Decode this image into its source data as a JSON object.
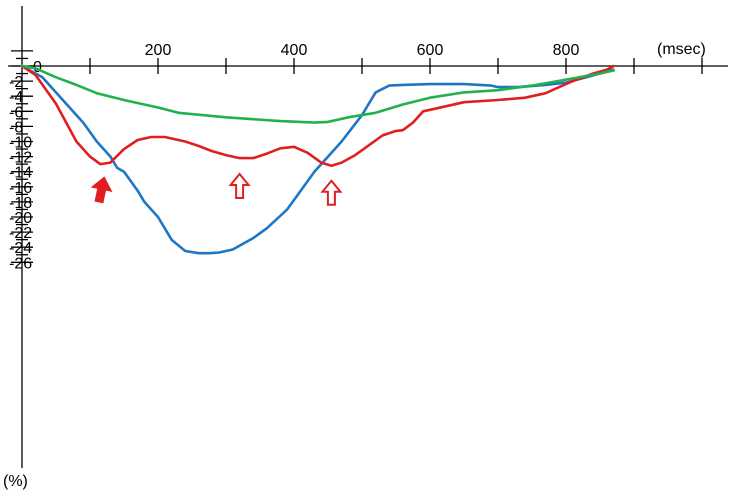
{
  "chart_data": {
    "type": "line",
    "title": "",
    "xlabel": "(msec)",
    "ylabel": "(%)",
    "xlim": [
      0,
      900
    ],
    "ylim": [
      -27,
      4
    ],
    "x_ticks": [
      0,
      200,
      400,
      600,
      800
    ],
    "x_tick_labels": [
      "0",
      "200",
      "400",
      "600",
      "800"
    ],
    "y_ticks": [
      0,
      -2,
      -4,
      -6,
      -8,
      -10,
      -12,
      -14,
      -16,
      -18,
      -20,
      -22,
      -24,
      -26
    ],
    "y_tick_labels": [
      "0",
      "-2",
      "-4",
      "-6",
      "-8",
      "-10",
      "-12",
      "-14",
      "-16",
      "-18",
      "-20",
      "-22",
      "-24",
      "-26"
    ],
    "grid": false,
    "legend": "none",
    "series": [
      {
        "color": "#1f77c4",
        "x": [
          0,
          30,
          60,
          90,
          110,
          130,
          140,
          150,
          170,
          180,
          200,
          220,
          240,
          260,
          275,
          290,
          310,
          330,
          340,
          360,
          390,
          410,
          430,
          450,
          470,
          500,
          520,
          540,
          560,
          600,
          650,
          690,
          700,
          730,
          770,
          800,
          830,
          850,
          870
        ],
        "y": [
          0,
          -1.5,
          -4.5,
          -7.5,
          -10,
          -12,
          -13.5,
          -14,
          -16.5,
          -18,
          -20,
          -23,
          -24.5,
          -24.8,
          -24.8,
          -24.7,
          -24.3,
          -23.3,
          -22.8,
          -21.5,
          -19,
          -16.5,
          -14,
          -12,
          -10,
          -6.5,
          -3.5,
          -2.6,
          -2.5,
          -2.4,
          -2.4,
          -2.6,
          -2.8,
          -2.8,
          -2.5,
          -2.2,
          -1.5,
          -1,
          -0.5
        ]
      },
      {
        "color": "#e02020",
        "x": [
          0,
          20,
          50,
          80,
          100,
          115,
          130,
          150,
          170,
          190,
          210,
          240,
          260,
          280,
          300,
          320,
          340,
          360,
          380,
          400,
          420,
          440,
          455,
          470,
          490,
          510,
          530,
          550,
          560,
          575,
          590,
          610,
          650,
          700,
          740,
          770,
          790,
          810,
          840,
          860,
          870,
          860
        ],
        "y": [
          0,
          -1.2,
          -5,
          -10,
          -12,
          -13,
          -12.8,
          -11,
          -9.8,
          -9.4,
          -9.4,
          -10,
          -10.6,
          -11.3,
          -11.8,
          -12.2,
          -12.2,
          -11.6,
          -10.9,
          -10.7,
          -11.5,
          -12.8,
          -13.2,
          -12.8,
          -11.8,
          -10.5,
          -9.2,
          -8.6,
          -8.5,
          -7.5,
          -6,
          -5.6,
          -4.8,
          -4.5,
          -4.2,
          -3.6,
          -2.8,
          -2,
          -1,
          -0.5,
          0,
          -0.6
        ]
      },
      {
        "color": "#22b14c",
        "x": [
          0,
          20,
          50,
          80,
          110,
          150,
          200,
          230,
          300,
          380,
          430,
          450,
          480,
          520,
          560,
          600,
          650,
          700,
          750,
          800,
          850,
          870
        ],
        "y": [
          0,
          -0.3,
          -1.5,
          -2.5,
          -3.6,
          -4.5,
          -5.5,
          -6.2,
          -6.8,
          -7.3,
          -7.5,
          -7.4,
          -6.8,
          -6.2,
          -5.1,
          -4.2,
          -3.5,
          -3.2,
          -2.6,
          -1.8,
          -1,
          -0.6
        ]
      }
    ],
    "annotations": [
      {
        "shape": "filled-arrow-up",
        "color": "#e02020",
        "x": 117,
        "y": -14.8
      },
      {
        "shape": "open-arrow-up",
        "color": "#e02020",
        "x": 320,
        "y": -14.3
      },
      {
        "shape": "open-arrow-up",
        "color": "#e02020",
        "x": 455,
        "y": -15.2
      }
    ]
  }
}
